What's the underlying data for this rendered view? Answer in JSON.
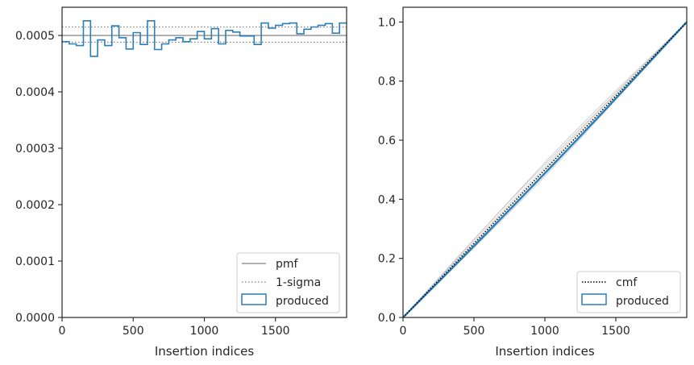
{
  "chart_data": [
    {
      "type": "line",
      "xlabel": "Insertion indices",
      "ylabel": "",
      "xlim": [
        0,
        2000
      ],
      "ylim": [
        0,
        0.00055
      ],
      "xticks": [
        0,
        500,
        1000,
        1500
      ],
      "xtick_labels": [
        "0",
        "500",
        "1000",
        "1500"
      ],
      "yticks": [
        0.0,
        0.0001,
        0.0002,
        0.0003,
        0.0004,
        0.0005
      ],
      "ytick_labels": [
        "0.0000",
        "0.0001",
        "0.0002",
        "0.0003",
        "0.0004",
        "0.0005"
      ],
      "grid": false,
      "legend_position": "bottom-right",
      "legend": [
        "pmf",
        "1-sigma",
        "produced"
      ],
      "pmf": 0.0005,
      "sigma_band": [
        0.000488,
        0.000515
      ],
      "histogram": {
        "bin_edges": [
          0,
          50,
          100,
          150,
          200,
          250,
          300,
          350,
          400,
          450,
          500,
          550,
          600,
          650,
          700,
          750,
          800,
          850,
          900,
          950,
          1000,
          1050,
          1100,
          1150,
          1200,
          1250,
          1300,
          1350,
          1400,
          1450,
          1500,
          1550,
          1600,
          1650,
          1700,
          1750,
          1800,
          1850,
          1900,
          1950,
          2000
        ],
        "values": [
          0.000489,
          0.000485,
          0.000482,
          0.000526,
          0.000463,
          0.000492,
          0.000482,
          0.000517,
          0.000496,
          0.000476,
          0.000505,
          0.000484,
          0.000526,
          0.000475,
          0.000485,
          0.000492,
          0.000496,
          0.000489,
          0.000494,
          0.000507,
          0.000494,
          0.000512,
          0.000485,
          0.000509,
          0.000506,
          0.000499,
          0.000499,
          0.000484,
          0.000522,
          0.000513,
          0.000518,
          0.000521,
          0.000522,
          0.000503,
          0.000511,
          0.000515,
          0.000518,
          0.000521,
          0.000504,
          0.000522
        ]
      },
      "colors": {
        "pmf": "#808080",
        "sigma": "#808080",
        "produced": "#2a7fb8"
      }
    },
    {
      "type": "line",
      "xlabel": "Insertion indices",
      "ylabel": "",
      "xlim": [
        0,
        2000
      ],
      "ylim": [
        0,
        1.05
      ],
      "xticks": [
        0,
        500,
        1000,
        1500
      ],
      "xtick_labels": [
        "0",
        "500",
        "1000",
        "1500"
      ],
      "yticks": [
        0.0,
        0.2,
        0.4,
        0.6,
        0.8,
        1.0
      ],
      "ytick_labels": [
        "0.0",
        "0.2",
        "0.4",
        "0.6",
        "0.8",
        "1.0"
      ],
      "grid": false,
      "legend_position": "bottom-right",
      "legend": [
        "cmf",
        "produced"
      ],
      "cmf": {
        "x": [
          0,
          2000
        ],
        "y": [
          0,
          1.0
        ]
      },
      "produced_deviation_peak": 0.012,
      "envelope_deviations": [
        0.02,
        -0.016,
        0.012,
        -0.01,
        0.025,
        -0.022
      ],
      "colors": {
        "cmf": "#000000",
        "produced": "#2a7fb8",
        "envelope": "#bdbdbd"
      }
    }
  ]
}
